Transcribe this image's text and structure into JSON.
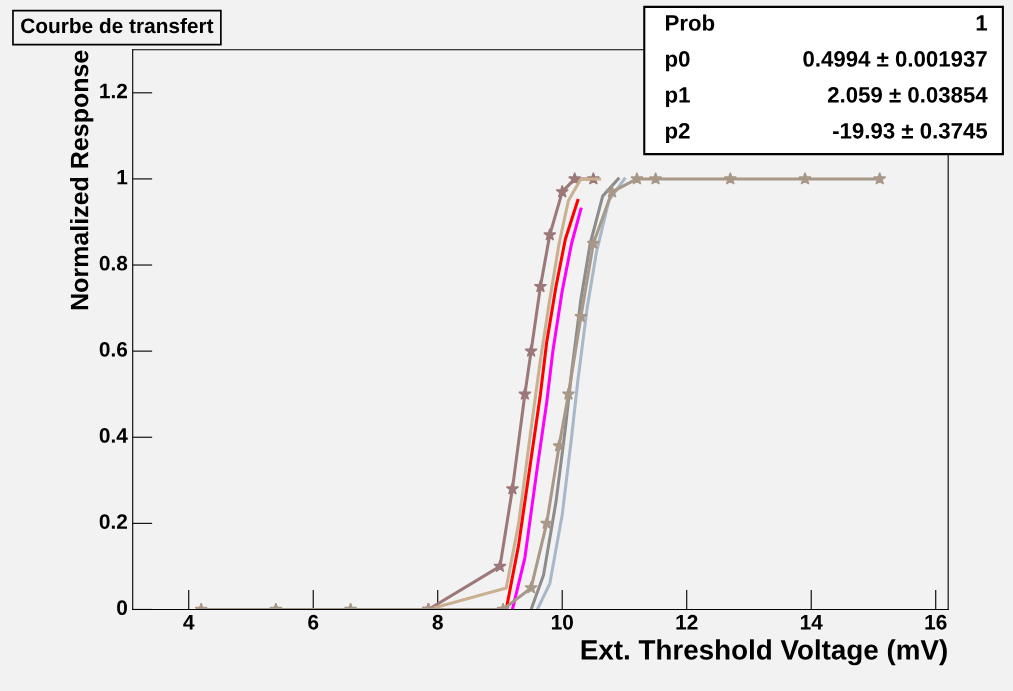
{
  "chart_data": {
    "type": "line",
    "title": "Courbe de transfert",
    "xlabel": "Ext. Threshold Voltage (mV)",
    "ylabel": "Normalized Response",
    "xlim": [
      3.1,
      16.2
    ],
    "ylim": [
      0,
      1.3
    ],
    "xticks": [
      4,
      6,
      8,
      10,
      12,
      14,
      16
    ],
    "yticks": [
      0,
      0.2,
      0.4,
      0.6,
      0.8,
      1,
      1.2
    ],
    "grid": false,
    "legend": false,
    "line_style": "solid",
    "series": [
      {
        "color": "#9c7878",
        "marker": "star",
        "x": [
          7.85,
          9.0,
          9.2,
          9.4,
          9.5,
          9.65,
          9.8,
          10.0,
          10.2,
          10.5
        ],
        "values": [
          0,
          0.1,
          0.28,
          0.5,
          0.6,
          0.75,
          0.87,
          0.97,
          1,
          1
        ]
      },
      {
        "color": "#c8b090",
        "marker": "none",
        "x": [
          7.85,
          9.1,
          9.3,
          9.5,
          9.65,
          9.8,
          9.95,
          10.1,
          10.3,
          10.6
        ],
        "values": [
          0,
          0.05,
          0.2,
          0.42,
          0.58,
          0.72,
          0.85,
          0.95,
          1,
          1
        ]
      },
      {
        "color": "#ff0000",
        "marker": "none",
        "x": [
          9.1,
          9.3,
          9.5,
          9.65,
          9.75,
          9.9,
          10.05,
          10.25
        ],
        "values": [
          0,
          0.15,
          0.35,
          0.5,
          0.62,
          0.75,
          0.86,
          0.95
        ]
      },
      {
        "color": "#ff00ff",
        "marker": "none",
        "x": [
          9.2,
          9.4,
          9.6,
          9.75,
          9.85,
          10.0,
          10.15,
          10.3
        ],
        "values": [
          0,
          0.12,
          0.33,
          0.48,
          0.6,
          0.74,
          0.85,
          0.93
        ]
      },
      {
        "color": "#8c8c8c",
        "marker": "none",
        "x": [
          9.5,
          9.7,
          9.9,
          10.05,
          10.15,
          10.3,
          10.45,
          10.65,
          10.9
        ],
        "values": [
          0,
          0.08,
          0.25,
          0.42,
          0.55,
          0.72,
          0.85,
          0.96,
          1
        ]
      },
      {
        "color": "#a8b8c8",
        "marker": "none",
        "x": [
          9.6,
          9.8,
          10.0,
          10.15,
          10.25,
          10.4,
          10.55,
          10.75,
          11.0
        ],
        "values": [
          0,
          0.06,
          0.22,
          0.4,
          0.53,
          0.7,
          0.83,
          0.95,
          1
        ]
      },
      {
        "color": "#a89888",
        "marker": "star",
        "x": [
          4.2,
          5.4,
          6.6,
          7.85,
          9.05,
          9.5,
          9.75,
          9.95,
          10.1,
          10.3,
          10.5,
          10.8,
          11.2,
          11.5,
          12.7,
          13.9,
          15.1
        ],
        "values": [
          0,
          0,
          0,
          0,
          0,
          0.05,
          0.2,
          0.38,
          0.5,
          0.68,
          0.85,
          0.97,
          1,
          1,
          1,
          1,
          1
        ]
      }
    ],
    "annotations": [
      "Prob",
      "1",
      "p0",
      "0.4994 ± 0.001937",
      "p1",
      "2.059 ± 0.03854",
      "p2",
      "-19.93 ± 0.3745"
    ]
  }
}
